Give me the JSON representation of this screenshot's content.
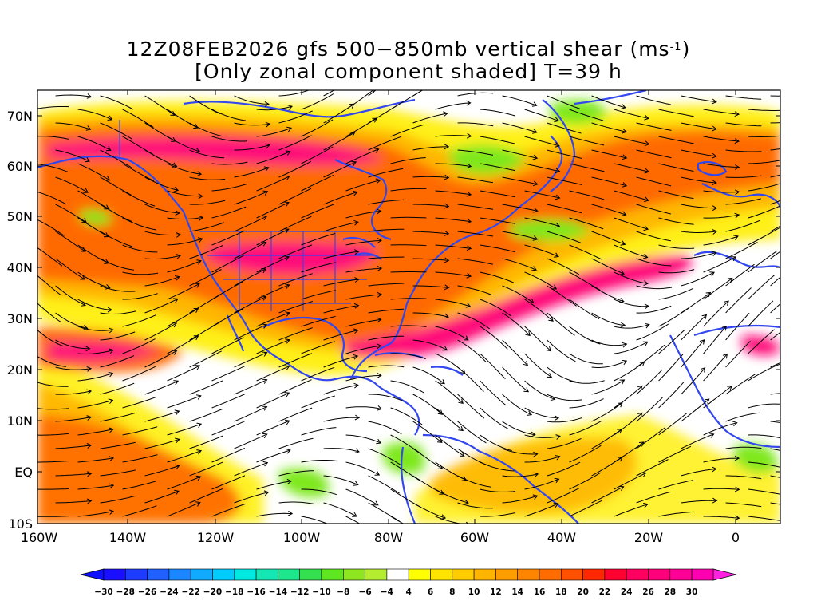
{
  "title": {
    "line1_prefix": "12Z08FEB2026 gfs 500−850mb vertical shear (ms",
    "line1_sup": "-1",
    "line1_suffix": ")",
    "line2": "[Only zonal component shaded] T=39 h"
  },
  "y_axis_labels": [
    "70N",
    "60N",
    "50N",
    "40N",
    "30N",
    "20N",
    "10N",
    "EQ",
    "10S"
  ],
  "x_axis_labels": [
    "160W",
    "140W",
    "120W",
    "100W",
    "80W",
    "60W",
    "40W",
    "20W",
    "0"
  ],
  "colorbar": {
    "labels": [
      "-30",
      "-28",
      "-26",
      "-24",
      "-22",
      "-20",
      "-18",
      "-16",
      "-14",
      "-12",
      "-10",
      "-8",
      "-6",
      "-4",
      "4",
      "6",
      "8",
      "10",
      "12",
      "14",
      "16",
      "18",
      "20",
      "22",
      "24",
      "26",
      "28",
      "30"
    ],
    "colors": [
      "#1a10ff",
      "#1e3cff",
      "#2060ff",
      "#1a86ff",
      "#10aaff",
      "#00ccff",
      "#00e8e0",
      "#14e6b4",
      "#1ee68c",
      "#34e050",
      "#5ee620",
      "#8ee620",
      "#b4ec30",
      "#ffffff",
      "#ffff00",
      "#ffe400",
      "#ffcc00",
      "#ffb400",
      "#ff9c00",
      "#ff8400",
      "#ff6c00",
      "#ff5000",
      "#ff2800",
      "#ff0030",
      "#ff0060",
      "#ff007c",
      "#ff0096",
      "#ff00b0"
    ],
    "arrow_left_color": "#1010ff",
    "arrow_right_color": "#ff20e0"
  },
  "colors": {
    "coastline": "#3347ee",
    "streamline": "#000000",
    "jet_core": "#ff0a7a",
    "jet_edge": "#ff6a00",
    "shear_moderate": "#ffb400",
    "shear_weak": "#ffee00",
    "negative_shear": "#7ee81c"
  }
}
